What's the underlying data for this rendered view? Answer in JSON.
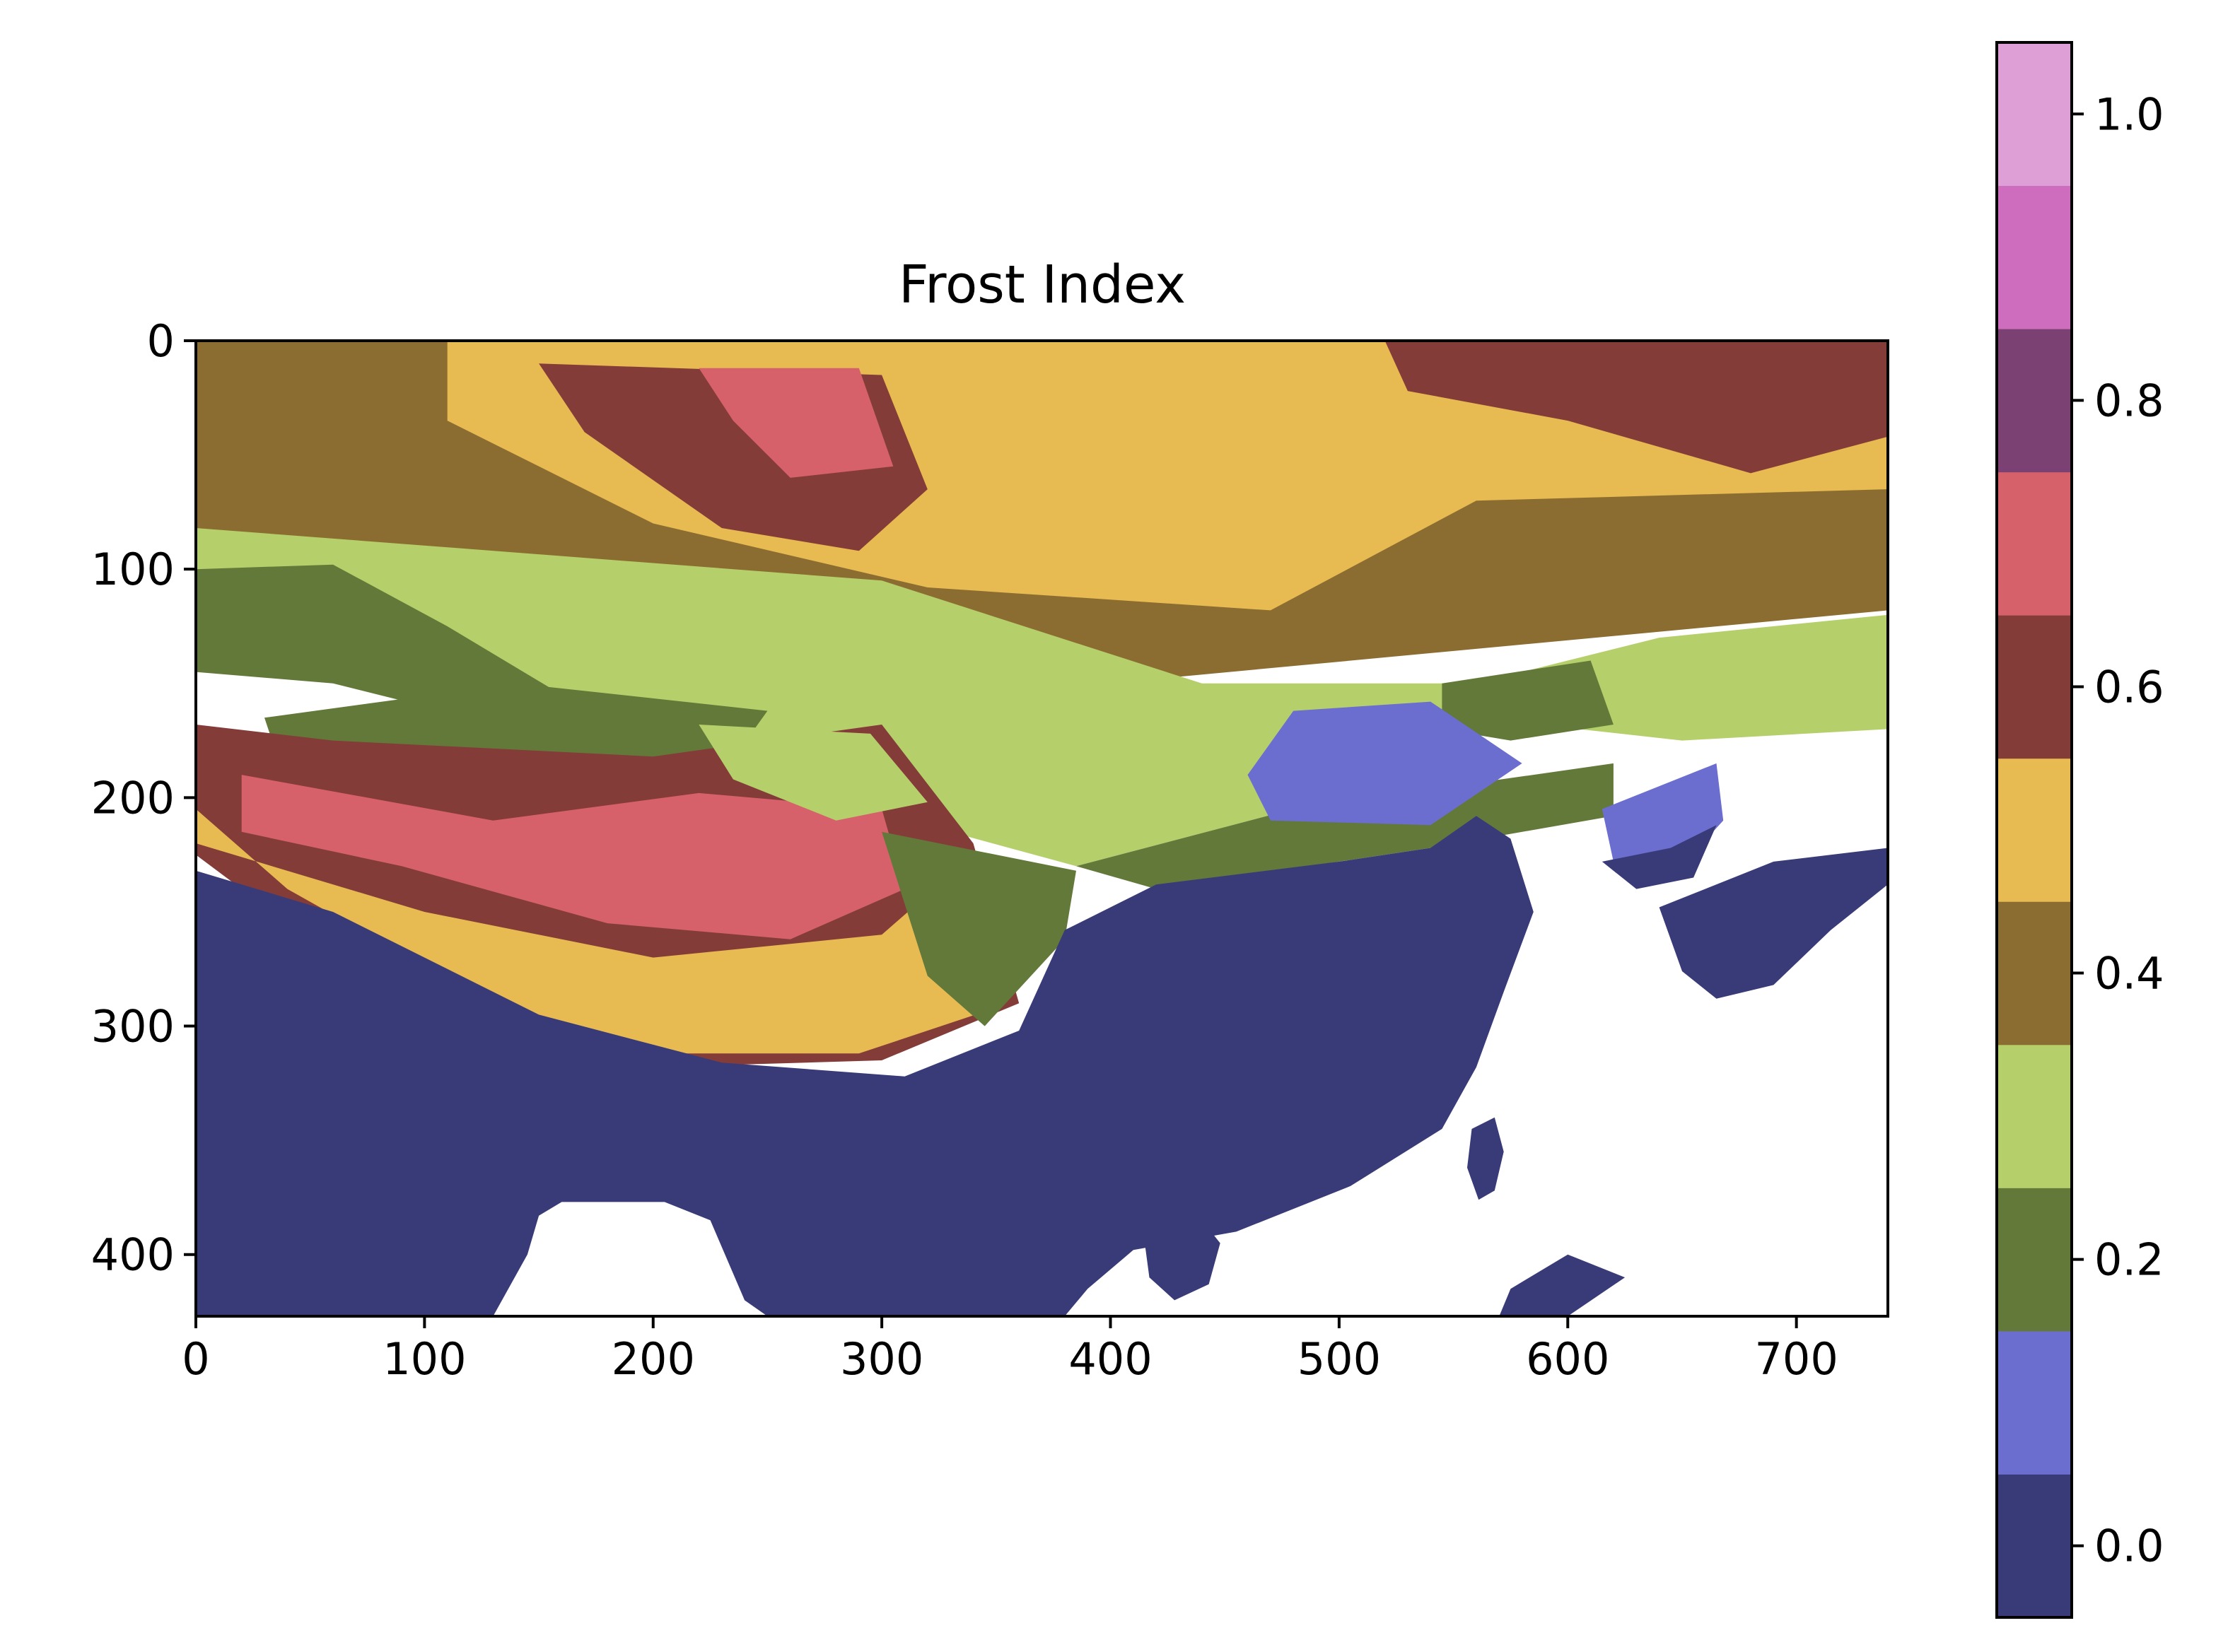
{
  "chart_data": {
    "type": "heatmap",
    "title": "Frost Index",
    "xlabel": "",
    "ylabel": "",
    "x_range": [
      0,
      740
    ],
    "y_range": [
      0,
      427
    ],
    "y_inverted": true,
    "x_ticks": [
      0,
      100,
      200,
      300,
      400,
      500,
      600,
      700
    ],
    "x_tick_labels": [
      "0",
      "100",
      "200",
      "300",
      "400",
      "500",
      "600",
      "700"
    ],
    "y_ticks": [
      0,
      100,
      200,
      300,
      400
    ],
    "y_tick_labels": [
      "0",
      "100",
      "200",
      "300",
      "400"
    ],
    "colorbar": {
      "range": [
        -0.05,
        1.05
      ],
      "ticks": [
        0.0,
        0.2,
        0.4,
        0.6,
        0.8,
        1.0
      ],
      "tick_labels": [
        "0.0",
        "0.2",
        "0.4",
        "0.6",
        "0.8",
        "1.0"
      ],
      "bins": [
        {
          "value": 0.0,
          "color": "#393b79"
        },
        {
          "value": 0.1,
          "color": "#6b6ecf"
        },
        {
          "value": 0.2,
          "color": "#637939"
        },
        {
          "value": 0.3,
          "color": "#b5cf6b"
        },
        {
          "value": 0.4,
          "color": "#8c6d31"
        },
        {
          "value": 0.5,
          "color": "#e7ba52"
        },
        {
          "value": 0.6,
          "color": "#843c39"
        },
        {
          "value": 0.7,
          "color": "#d6616b"
        },
        {
          "value": 0.8,
          "color": "#7b4173"
        },
        {
          "value": 0.9,
          "color": "#ce6dbd"
        },
        {
          "value": 1.0,
          "color": "#de9ed6"
        }
      ]
    },
    "regions": [
      {
        "value": 0.4,
        "points": [
          [
            0,
            0
          ],
          [
            740,
            0
          ],
          [
            740,
            118
          ],
          [
            420,
            148
          ],
          [
            300,
            138
          ],
          [
            0,
            92
          ]
        ]
      },
      {
        "value": 0.5,
        "points": [
          [
            110,
            0
          ],
          [
            740,
            0
          ],
          [
            740,
            65
          ],
          [
            560,
            70
          ],
          [
            470,
            118
          ],
          [
            320,
            108
          ],
          [
            200,
            80
          ],
          [
            110,
            35
          ]
        ]
      },
      {
        "value": 0.6,
        "points": [
          [
            520,
            0
          ],
          [
            740,
            0
          ],
          [
            740,
            42
          ],
          [
            680,
            58
          ],
          [
            600,
            35
          ],
          [
            530,
            22
          ]
        ]
      },
      {
        "value": 0.6,
        "points": [
          [
            150,
            10
          ],
          [
            300,
            15
          ],
          [
            320,
            65
          ],
          [
            290,
            92
          ],
          [
            230,
            82
          ],
          [
            170,
            40
          ]
        ]
      },
      {
        "value": 0.7,
        "points": [
          [
            220,
            12
          ],
          [
            290,
            12
          ],
          [
            305,
            55
          ],
          [
            260,
            60
          ],
          [
            235,
            35
          ]
        ]
      },
      {
        "value": 0.3,
        "points": [
          [
            0,
            82
          ],
          [
            300,
            105
          ],
          [
            440,
            150
          ],
          [
            560,
            150
          ],
          [
            640,
            130
          ],
          [
            740,
            120
          ],
          [
            740,
            170
          ],
          [
            650,
            175
          ],
          [
            560,
            165
          ],
          [
            480,
            205
          ],
          [
            385,
            230
          ],
          [
            330,
            215
          ],
          [
            240,
            175
          ],
          [
            0,
            130
          ]
        ]
      },
      {
        "value": 0.2,
        "points": [
          [
            0,
            100
          ],
          [
            60,
            98
          ],
          [
            110,
            125
          ],
          [
            160,
            155
          ],
          [
            140,
            170
          ],
          [
            60,
            150
          ],
          [
            0,
            145
          ]
        ]
      },
      {
        "value": 0.2,
        "points": [
          [
            30,
            165
          ],
          [
            140,
            150
          ],
          [
            250,
            162
          ],
          [
            230,
            190
          ],
          [
            100,
            210
          ],
          [
            40,
            195
          ]
        ]
      },
      {
        "value": 0.2,
        "points": [
          [
            385,
            230
          ],
          [
            480,
            205
          ],
          [
            620,
            185
          ],
          [
            620,
            208
          ],
          [
            540,
            222
          ],
          [
            420,
            240
          ]
        ]
      },
      {
        "value": 0.2,
        "points": [
          [
            545,
            150
          ],
          [
            610,
            140
          ],
          [
            620,
            168
          ],
          [
            575,
            175
          ],
          [
            545,
            170
          ]
        ]
      },
      {
        "value": 0.1,
        "points": [
          [
            480,
            162
          ],
          [
            540,
            158
          ],
          [
            580,
            185
          ],
          [
            540,
            212
          ],
          [
            470,
            210
          ],
          [
            460,
            190
          ]
        ]
      },
      {
        "value": 0.1,
        "points": [
          [
            615,
            205
          ],
          [
            665,
            185
          ],
          [
            668,
            210
          ],
          [
            648,
            232
          ],
          [
            620,
            228
          ]
        ]
      },
      {
        "value": 0.6,
        "points": [
          [
            0,
            168
          ],
          [
            60,
            175
          ],
          [
            200,
            182
          ],
          [
            300,
            168
          ],
          [
            340,
            220
          ],
          [
            360,
            290
          ],
          [
            300,
            315
          ],
          [
            200,
            318
          ],
          [
            120,
            290
          ],
          [
            40,
            255
          ],
          [
            0,
            225
          ]
        ]
      },
      {
        "value": 0.5,
        "points": [
          [
            0,
            205
          ],
          [
            40,
            240
          ],
          [
            120,
            285
          ],
          [
            200,
            312
          ],
          [
            290,
            312
          ],
          [
            350,
            292
          ],
          [
            370,
            245
          ],
          [
            340,
            225
          ],
          [
            300,
            260
          ],
          [
            200,
            270
          ],
          [
            100,
            250
          ],
          [
            0,
            220
          ]
        ]
      },
      {
        "value": 0.7,
        "points": [
          [
            20,
            190
          ],
          [
            130,
            210
          ],
          [
            220,
            198
          ],
          [
            300,
            205
          ],
          [
            310,
            240
          ],
          [
            260,
            262
          ],
          [
            180,
            255
          ],
          [
            90,
            230
          ],
          [
            20,
            215
          ]
        ]
      },
      {
        "value": 0.3,
        "points": [
          [
            220,
            168
          ],
          [
            295,
            172
          ],
          [
            320,
            202
          ],
          [
            280,
            210
          ],
          [
            235,
            192
          ]
        ]
      },
      {
        "value": 0.2,
        "points": [
          [
            300,
            215
          ],
          [
            385,
            232
          ],
          [
            380,
            262
          ],
          [
            345,
            300
          ],
          [
            320,
            278
          ]
        ]
      },
      {
        "value": 0.0,
        "points": [
          [
            0,
            232
          ],
          [
            60,
            250
          ],
          [
            150,
            295
          ],
          [
            230,
            316
          ],
          [
            310,
            322
          ],
          [
            360,
            302
          ],
          [
            380,
            258
          ],
          [
            420,
            238
          ],
          [
            500,
            228
          ],
          [
            540,
            222
          ],
          [
            560,
            208
          ],
          [
            575,
            218
          ],
          [
            585,
            250
          ],
          [
            572,
            285
          ],
          [
            560,
            318
          ],
          [
            545,
            345
          ],
          [
            505,
            370
          ],
          [
            455,
            390
          ],
          [
            410,
            398
          ],
          [
            390,
            415
          ],
          [
            380,
            427
          ],
          [
            250,
            427
          ],
          [
            240,
            420
          ],
          [
            225,
            385
          ],
          [
            205,
            377
          ],
          [
            160,
            377
          ],
          [
            150,
            383
          ],
          [
            145,
            400
          ],
          [
            130,
            427
          ],
          [
            0,
            427
          ]
        ]
      },
      {
        "value": 0.0,
        "points": [
          [
            615,
            228
          ],
          [
            645,
            222
          ],
          [
            665,
            212
          ],
          [
            655,
            235
          ],
          [
            630,
            240
          ]
        ]
      },
      {
        "value": 0.0,
        "points": [
          [
            640,
            248
          ],
          [
            690,
            228
          ],
          [
            740,
            222
          ],
          [
            740,
            238
          ],
          [
            715,
            258
          ],
          [
            690,
            282
          ],
          [
            665,
            288
          ],
          [
            650,
            276
          ]
        ]
      },
      {
        "value": 0.0,
        "points": [
          [
            558,
            345
          ],
          [
            568,
            340
          ],
          [
            572,
            355
          ],
          [
            568,
            372
          ],
          [
            561,
            376
          ],
          [
            556,
            362
          ]
        ]
      },
      {
        "value": 0.0,
        "points": [
          [
            415,
            395
          ],
          [
            440,
            385
          ],
          [
            448,
            395
          ],
          [
            443,
            413
          ],
          [
            428,
            420
          ],
          [
            417,
            410
          ]
        ]
      },
      {
        "value": 0.0,
        "points": [
          [
            600,
            400
          ],
          [
            625,
            410
          ],
          [
            600,
            427
          ],
          [
            570,
            427
          ],
          [
            575,
            415
          ]
        ]
      }
    ]
  }
}
